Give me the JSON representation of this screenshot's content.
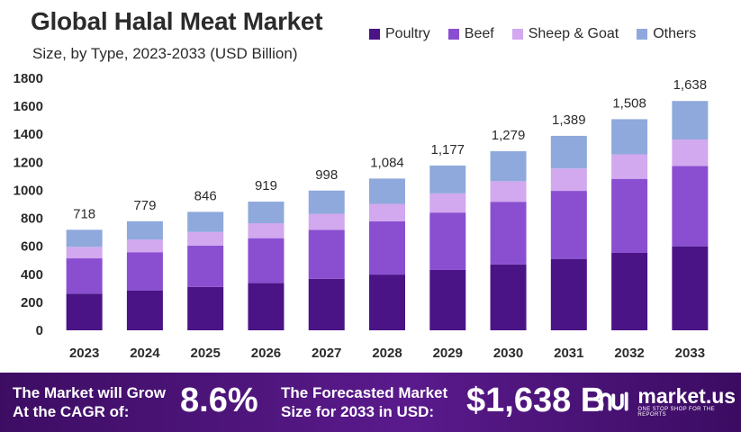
{
  "title": "Global Halal Meat Market",
  "subtitle": "Size, by Type, 2023-2033 (USD Billion)",
  "colors": {
    "poultry": "#4a1486",
    "beef": "#8a4fd0",
    "sheep_goat": "#d2a8ef",
    "others": "#8fa9dc",
    "footer": "#4b1578"
  },
  "chart_data": {
    "type": "bar",
    "stacked": true,
    "title": "Global Halal Meat Market",
    "subtitle": "Size, by Type, 2023-2033 (USD Billion)",
    "categories": [
      "2023",
      "2024",
      "2025",
      "2026",
      "2027",
      "2028",
      "2029",
      "2030",
      "2031",
      "2032",
      "2033"
    ],
    "series": [
      {
        "name": "Poultry",
        "values": [
          262,
          285,
          310,
          337,
          368,
          398,
          431,
          471,
          510,
          553,
          600
        ]
      },
      {
        "name": "Beef",
        "values": [
          252,
          273,
          295,
          321,
          349,
          380,
          410,
          447,
          486,
          529,
          573
        ]
      },
      {
        "name": "Sheep & Goat",
        "values": [
          82,
          90,
          97,
          107,
          115,
          125,
          137,
          147,
          160,
          175,
          190
        ]
      },
      {
        "name": "Others",
        "values": [
          122,
          131,
          144,
          154,
          166,
          181,
          199,
          214,
          233,
          251,
          275
        ]
      }
    ],
    "totals": [
      "718",
      "779",
      "846",
      "919",
      "998",
      "1,084",
      "1,177",
      "1,279",
      "1,389",
      "1,508",
      "1,638"
    ],
    "yticks": [
      "0",
      "200",
      "400",
      "600",
      "800",
      "1000",
      "1200",
      "1400",
      "1600",
      "1800"
    ],
    "ylim": [
      0,
      1800
    ],
    "grid": false,
    "legend_position": "top-right"
  },
  "footer": {
    "cagr_line1": "The Market will Grow",
    "cagr_line2": "At the CAGR of:",
    "cagr_value": "8.6%",
    "forecast_line1": "The Forecasted Market",
    "forecast_line2": "Size for 2033 in USD:",
    "forecast_value": "$1,638 B",
    "brand_name": "market.us",
    "brand_tagline": "ONE STOP SHOP FOR THE REPORTS"
  }
}
